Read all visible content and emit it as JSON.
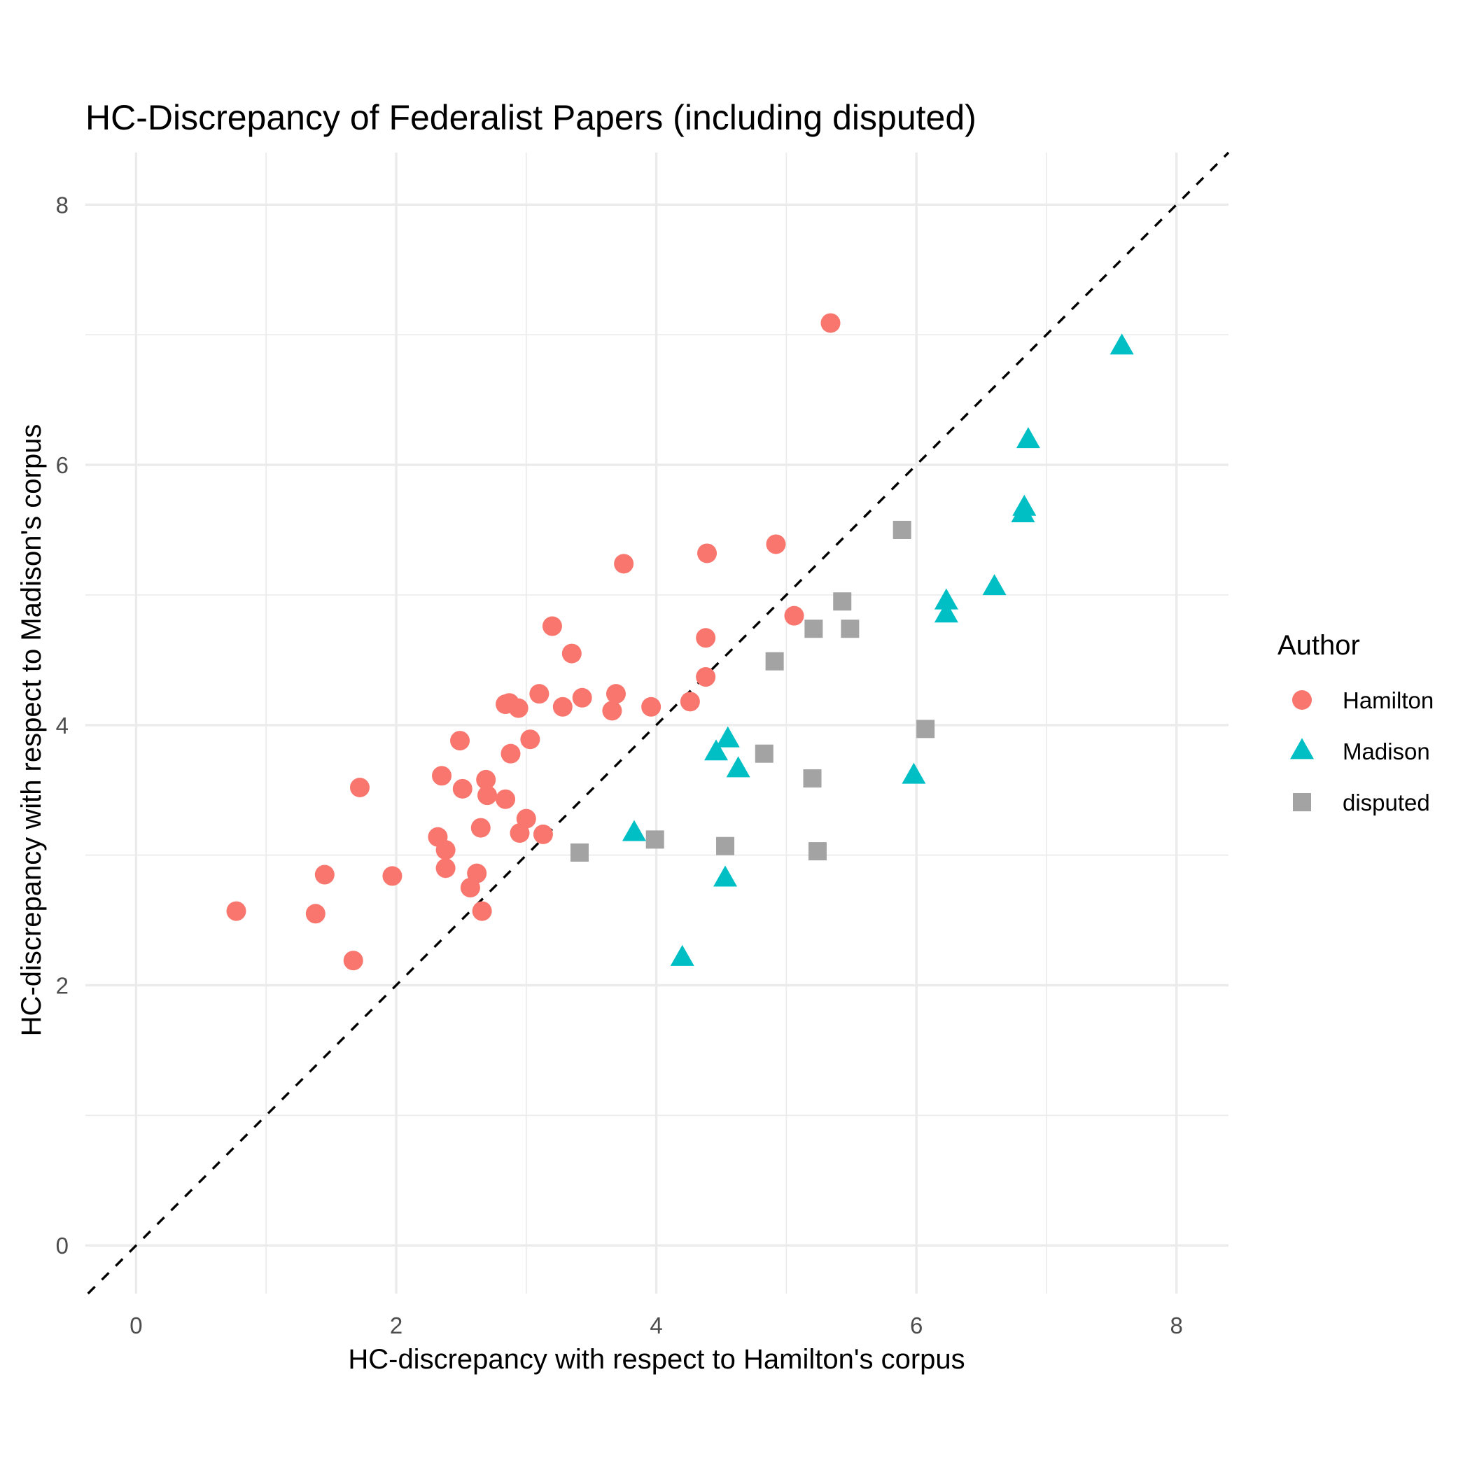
{
  "chart_data": {
    "type": "scatter",
    "title": "HC-Discrepancy of Federalist Papers (including disputed)",
    "xlabel": "HC-discrepancy with respect to Hamilton's corpus",
    "ylabel": "HC-discrepancy with respect to Madison's corpus",
    "xlim": [
      -0.39,
      8.4
    ],
    "ylim": [
      -0.37,
      8.4
    ],
    "x_ticks": [
      "0",
      "2",
      "4",
      "6",
      "8"
    ],
    "y_ticks": [
      "0",
      "2",
      "4",
      "6",
      "8"
    ],
    "grid": true,
    "reference_line": {
      "slope": 1,
      "intercept": 0,
      "style": "dashed",
      "color": "#000000"
    },
    "legend": {
      "title": "Author",
      "placement": "right"
    },
    "series": [
      {
        "name": "Hamilton",
        "marker": "circle",
        "color": "#f8766d",
        "points": [
          [
            0.77,
            2.57
          ],
          [
            1.38,
            2.55
          ],
          [
            1.45,
            2.85
          ],
          [
            1.67,
            2.19
          ],
          [
            1.72,
            3.52
          ],
          [
            1.97,
            2.84
          ],
          [
            2.32,
            3.14
          ],
          [
            2.35,
            3.61
          ],
          [
            2.38,
            3.04
          ],
          [
            2.38,
            2.9
          ],
          [
            2.49,
            3.88
          ],
          [
            2.51,
            3.51
          ],
          [
            2.57,
            2.75
          ],
          [
            2.62,
            2.86
          ],
          [
            2.65,
            3.21
          ],
          [
            2.66,
            2.57
          ],
          [
            2.69,
            3.58
          ],
          [
            2.7,
            3.46
          ],
          [
            2.84,
            4.16
          ],
          [
            2.84,
            3.43
          ],
          [
            2.87,
            4.17
          ],
          [
            2.88,
            3.78
          ],
          [
            2.94,
            4.13
          ],
          [
            2.95,
            3.17
          ],
          [
            3.0,
            3.28
          ],
          [
            3.03,
            3.89
          ],
          [
            3.1,
            4.24
          ],
          [
            3.13,
            3.16
          ],
          [
            3.2,
            4.76
          ],
          [
            3.28,
            4.14
          ],
          [
            3.35,
            4.55
          ],
          [
            3.43,
            4.21
          ],
          [
            3.66,
            4.11
          ],
          [
            3.69,
            4.24
          ],
          [
            3.75,
            5.24
          ],
          [
            3.96,
            4.14
          ],
          [
            4.26,
            4.18
          ],
          [
            4.38,
            4.37
          ],
          [
            4.38,
            4.67
          ],
          [
            4.39,
            5.32
          ],
          [
            4.92,
            5.39
          ],
          [
            5.06,
            4.84
          ],
          [
            5.34,
            7.09
          ]
        ]
      },
      {
        "name": "Madison",
        "marker": "triangle",
        "color": "#00bfc4",
        "points": [
          [
            3.83,
            3.17
          ],
          [
            4.2,
            2.21
          ],
          [
            4.46,
            3.79
          ],
          [
            4.53,
            2.82
          ],
          [
            4.55,
            3.89
          ],
          [
            4.63,
            3.66
          ],
          [
            5.98,
            3.61
          ],
          [
            6.23,
            4.85
          ],
          [
            6.23,
            4.95
          ],
          [
            6.6,
            5.06
          ],
          [
            6.82,
            5.62
          ],
          [
            6.83,
            5.67
          ],
          [
            6.86,
            6.19
          ],
          [
            7.58,
            6.91
          ]
        ]
      },
      {
        "name": "disputed",
        "marker": "square",
        "color": "#a3a3a3",
        "points": [
          [
            3.41,
            3.02
          ],
          [
            3.99,
            3.12
          ],
          [
            4.53,
            3.07
          ],
          [
            4.83,
            3.78
          ],
          [
            4.91,
            4.49
          ],
          [
            5.2,
            3.59
          ],
          [
            5.21,
            4.74
          ],
          [
            5.24,
            3.03
          ],
          [
            5.43,
            4.95
          ],
          [
            5.49,
            4.74
          ],
          [
            5.89,
            5.5
          ],
          [
            6.07,
            3.97
          ]
        ]
      }
    ]
  }
}
